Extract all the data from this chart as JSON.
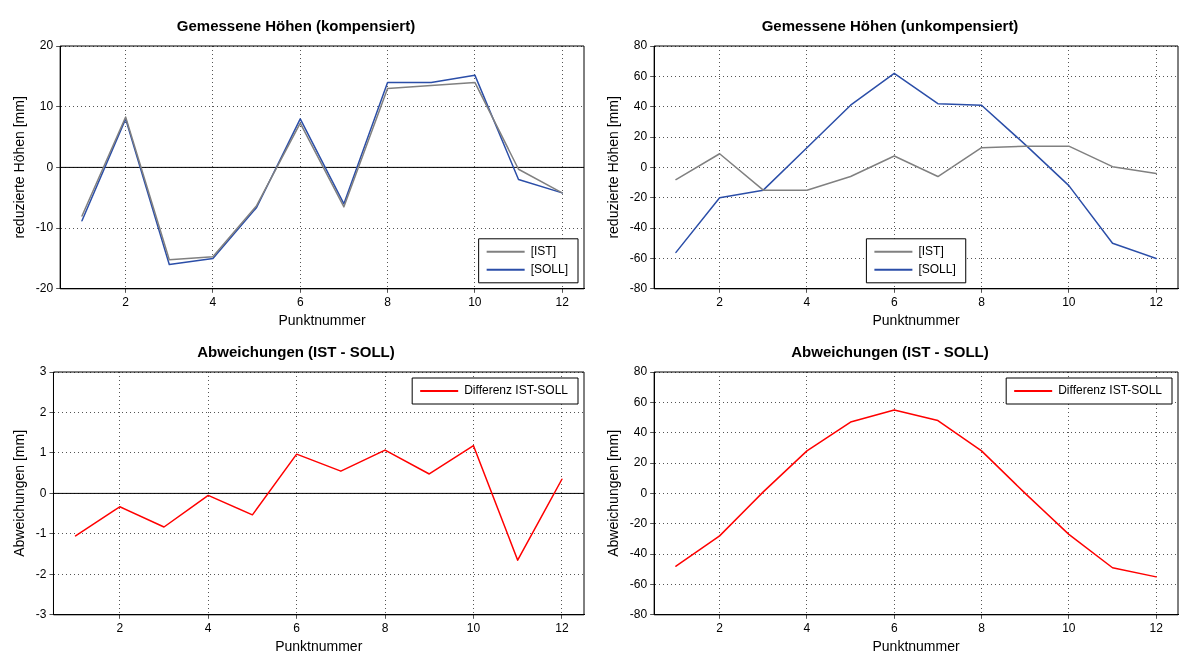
{
  "chart_data": [
    {
      "type": "line",
      "title": "Gemessene Höhen (kompensiert)",
      "xlabel": "Punktnummer",
      "ylabel": "reduzierte Höhen [mm]",
      "x": [
        1,
        2,
        3,
        4,
        5,
        6,
        7,
        8,
        9,
        10,
        11,
        12
      ],
      "xlim": [
        0.5,
        12.5
      ],
      "xticks": [
        2,
        4,
        6,
        8,
        10,
        12
      ],
      "ylim": [
        -20,
        20
      ],
      "yticks": [
        -20,
        -10,
        0,
        10,
        20
      ],
      "grid": true,
      "legend": "bottom right",
      "ref_lines": [
        {
          "axis": "y",
          "value": 0,
          "color": "#000000",
          "line_style": "solid"
        }
      ],
      "series": [
        {
          "name": "[IST]",
          "color": "#808080",
          "values": [
            -8,
            8.3,
            -15.2,
            -14.7,
            -6.3,
            7.3,
            -6.5,
            13,
            13.5,
            14,
            -0.3,
            -4.2
          ]
        },
        {
          "name": "[SOLL]",
          "color": "#2b4ea8",
          "values": [
            -8.8,
            8,
            -16,
            -15,
            -6.6,
            8,
            -6,
            14,
            14,
            15.2,
            -2,
            -4.2
          ]
        }
      ]
    },
    {
      "type": "line",
      "title": "Gemessene Höhen (unkompensiert)",
      "xlabel": "Punktnummer",
      "ylabel": "reduzierte Höhen [mm]",
      "x": [
        1,
        2,
        3,
        4,
        5,
        6,
        7,
        8,
        9,
        10,
        11,
        12
      ],
      "xlim": [
        0.5,
        12.5
      ],
      "xticks": [
        2,
        4,
        6,
        8,
        10,
        12
      ],
      "ylim": [
        -80,
        80
      ],
      "yticks": [
        -80,
        -60,
        -40,
        -20,
        0,
        20,
        40,
        60,
        80
      ],
      "grid": true,
      "legend": "bottom",
      "series": [
        {
          "name": "[IST]",
          "color": "#808080",
          "values": [
            -8,
            9,
            -15,
            -15,
            -6,
            7.5,
            -6,
            13,
            14,
            14,
            0.5,
            -4
          ]
        },
        {
          "name": "[SOLL]",
          "color": "#2b4ea8",
          "values": [
            -56,
            -20,
            -15,
            13,
            41,
            62,
            42,
            41,
            15,
            -12,
            -50,
            -60
          ]
        }
      ]
    },
    {
      "type": "line",
      "title": "Abweichungen (IST - SOLL)",
      "xlabel": "Punktnummer",
      "ylabel": "Abweichungen [mm]",
      "x": [
        1,
        2,
        3,
        4,
        5,
        6,
        7,
        8,
        9,
        10,
        11,
        12
      ],
      "xlim": [
        0.5,
        12.5
      ],
      "xticks": [
        2,
        4,
        6,
        8,
        10,
        12
      ],
      "ylim": [
        -3,
        3
      ],
      "yticks": [
        -3,
        -2,
        -1,
        0,
        1,
        2,
        3
      ],
      "grid": true,
      "legend": "top right",
      "ref_lines": [
        {
          "axis": "y",
          "value": 0,
          "color": "#000000",
          "line_style": "solid"
        }
      ],
      "series": [
        {
          "name": "Differenz IST-SOLL",
          "color": "#ff0000",
          "values": [
            -1.05,
            -0.33,
            -0.83,
            -0.05,
            -0.53,
            0.97,
            0.55,
            1.07,
            0.48,
            1.18,
            -1.65,
            0.35
          ]
        }
      ]
    },
    {
      "type": "line",
      "title": "Abweichungen (IST - SOLL)",
      "xlabel": "Punktnummer",
      "ylabel": "Abweichungen [mm]",
      "x": [
        1,
        2,
        3,
        4,
        5,
        6,
        7,
        8,
        9,
        10,
        11,
        12
      ],
      "xlim": [
        0.5,
        12.5
      ],
      "xticks": [
        2,
        4,
        6,
        8,
        10,
        12
      ],
      "ylim": [
        -80,
        80
      ],
      "yticks": [
        -80,
        -60,
        -40,
        -20,
        0,
        20,
        40,
        60,
        80
      ],
      "grid": true,
      "legend": "top right",
      "series": [
        {
          "name": "Differenz IST-SOLL",
          "color": "#ff0000",
          "values": [
            -48,
            -28,
            1,
            28,
            47,
            55,
            48,
            28,
            0,
            -27,
            -49,
            -55
          ]
        }
      ]
    }
  ]
}
